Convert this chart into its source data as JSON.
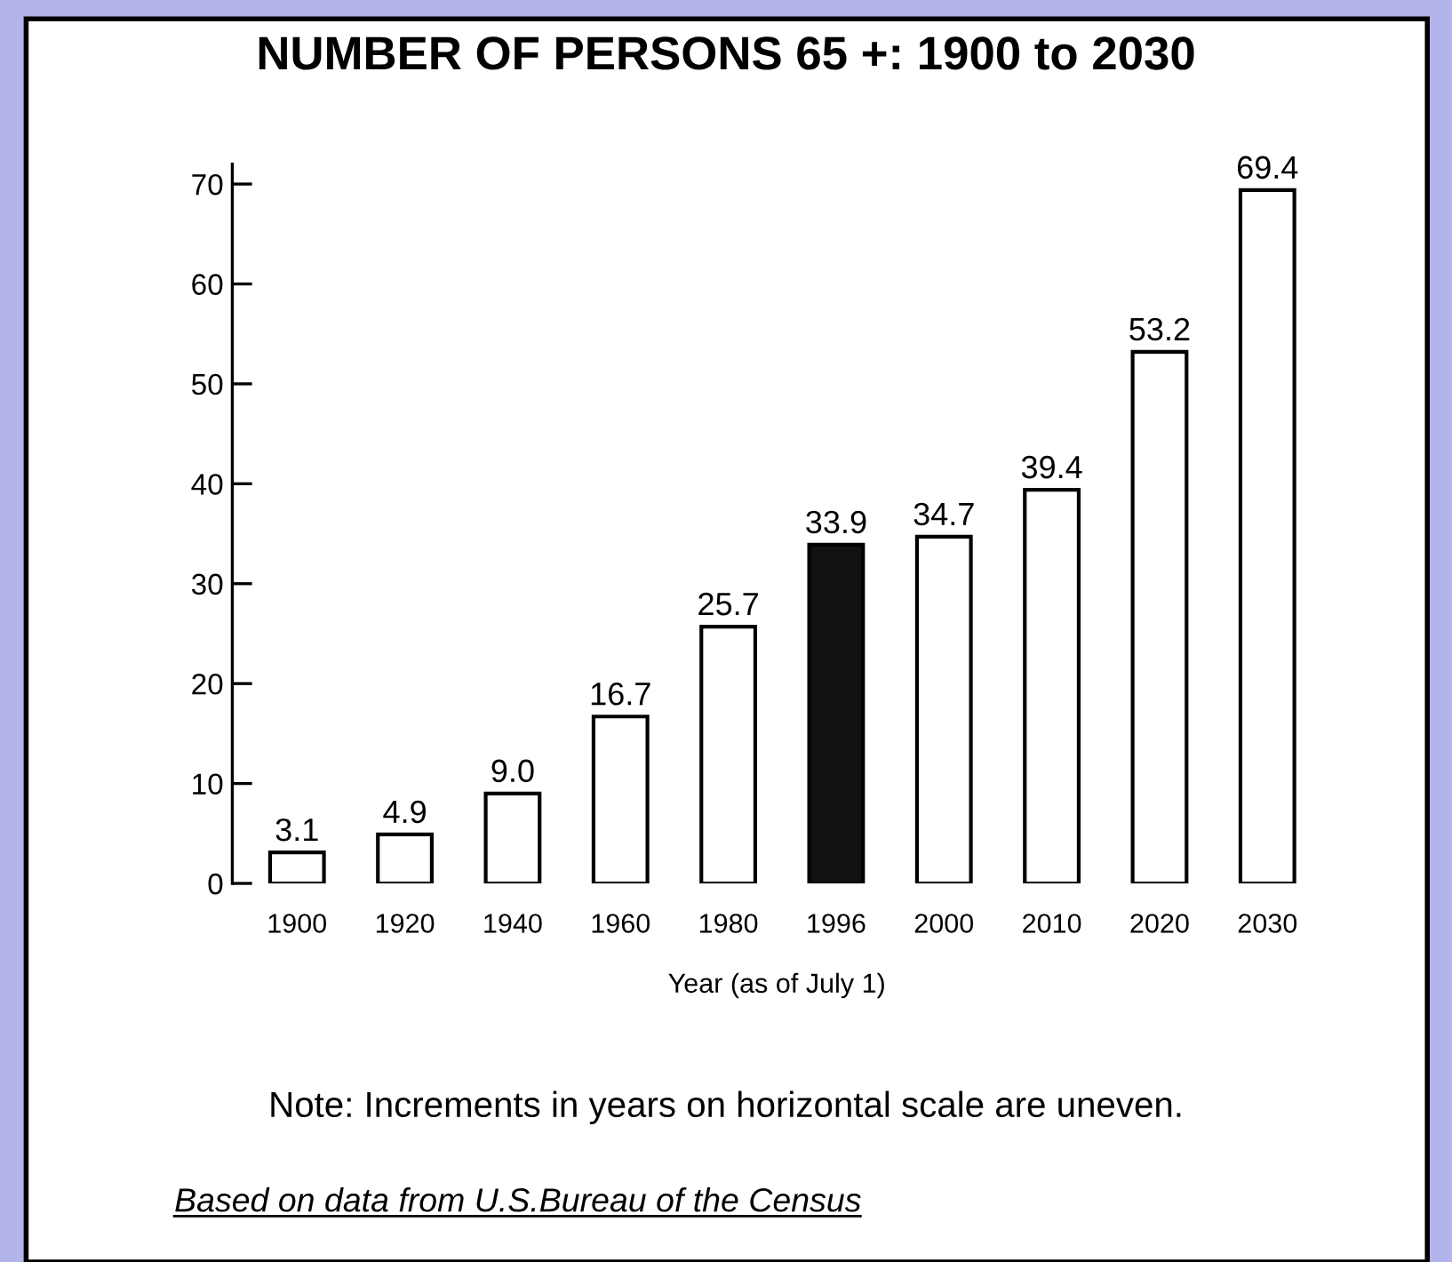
{
  "chart_data": {
    "type": "bar",
    "title": "NUMBER OF PERSONS 65 +: 1900 to 2030",
    "xlabel": "Year (as of July 1)",
    "categories": [
      "1900",
      "1920",
      "1940",
      "1960",
      "1980",
      "1996",
      "2000",
      "2010",
      "2020",
      "2030"
    ],
    "values": [
      3.1,
      4.9,
      9.0,
      16.7,
      25.7,
      33.9,
      34.7,
      39.4,
      53.2,
      69.4
    ],
    "value_labels": [
      "3.1",
      "4.9",
      "9.0",
      "16.7",
      "25.7",
      "33.9",
      "34.7",
      "39.4",
      "53.2",
      "69.4"
    ],
    "colors": [
      "#ffffff",
      "#ffffff",
      "#ffffff",
      "#ffffff",
      "#ffffff",
      "#111111",
      "#ffffff",
      "#ffffff",
      "#ffffff",
      "#ffffff"
    ],
    "ylim": [
      0,
      72
    ],
    "yticks": [
      0,
      10,
      20,
      30,
      40,
      50,
      60,
      70
    ],
    "grid": false,
    "legend": false,
    "annotations": [
      "Note: Increments in years on horizontal scale are uneven.",
      "Based on data from U.S.Bureau of the Census"
    ]
  }
}
